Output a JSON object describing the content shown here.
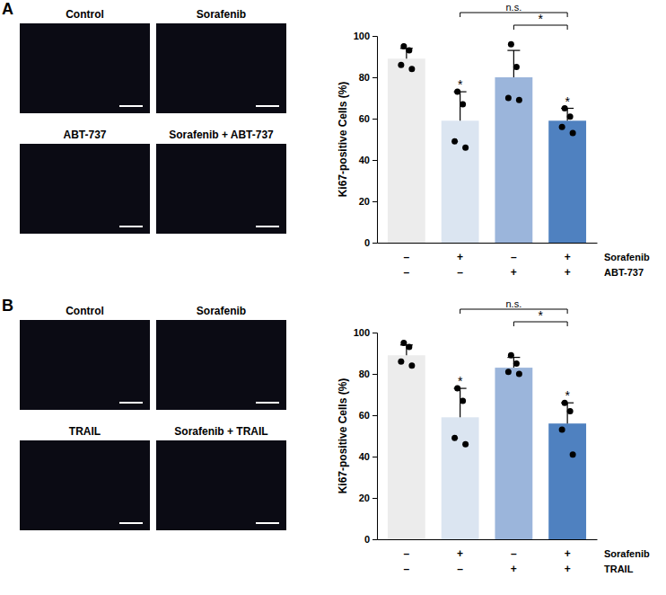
{
  "panels": [
    {
      "label": "A",
      "images": [
        "Control",
        "Sorafenib",
        "ABT-737",
        "Sorafenib + ABT-737"
      ]
    },
    {
      "label": "B",
      "images": [
        "Control",
        "Sorafenib",
        "TRAIL",
        "Sorafenib + TRAIL"
      ]
    }
  ],
  "chart_data": [
    {
      "type": "bar",
      "ylabel": "Ki67-positive Cells (%)",
      "categories": [
        null,
        null,
        null,
        null
      ],
      "values": [
        89,
        59,
        80,
        59
      ],
      "errors": [
        5,
        14,
        13,
        6
      ],
      "points": [
        [
          95,
          93,
          86,
          84
        ],
        [
          73,
          67,
          49,
          46
        ],
        [
          96,
          85,
          70,
          69
        ],
        [
          65,
          61,
          56,
          53
        ]
      ],
      "colors": [
        "#ececec",
        "#dbe5f1",
        "#9bb5db",
        "#4f81c0"
      ],
      "ylim": [
        0,
        100
      ],
      "yticks": [
        0,
        20,
        40,
        60,
        80,
        100
      ],
      "conditions": [
        {
          "name": "Sorafenib",
          "labels": [
            "–",
            "+",
            "–",
            "+"
          ]
        },
        {
          "name": "ABT-737",
          "labels": [
            "–",
            "–",
            "+",
            "+"
          ]
        }
      ],
      "annotations": [
        {
          "index": 1,
          "text": "*"
        },
        {
          "index": 3,
          "text": "*"
        }
      ],
      "brackets": [
        {
          "from": 1,
          "to": 3,
          "text": "n.s."
        },
        {
          "from": 2,
          "to": 3,
          "text": "*"
        }
      ]
    },
    {
      "type": "bar",
      "ylabel": "Ki67-positive Cells (%)",
      "categories": [
        null,
        null,
        null,
        null
      ],
      "values": [
        89,
        59,
        83,
        56
      ],
      "errors": [
        5,
        14,
        5,
        10
      ],
      "points": [
        [
          95,
          93,
          86,
          84
        ],
        [
          73,
          67,
          49,
          46
        ],
        [
          89,
          85,
          81,
          80
        ],
        [
          66,
          62,
          53,
          41
        ]
      ],
      "colors": [
        "#ececec",
        "#dbe5f1",
        "#9bb5db",
        "#4f81c0"
      ],
      "ylim": [
        0,
        100
      ],
      "yticks": [
        0,
        20,
        40,
        60,
        80,
        100
      ],
      "conditions": [
        {
          "name": "Sorafenib",
          "labels": [
            "–",
            "+",
            "–",
            "+"
          ]
        },
        {
          "name": "TRAIL",
          "labels": [
            "–",
            "–",
            "+",
            "+"
          ]
        }
      ],
      "annotations": [
        {
          "index": 1,
          "text": "*"
        },
        {
          "index": 3,
          "text": "*"
        }
      ],
      "brackets": [
        {
          "from": 1,
          "to": 3,
          "text": "n.s."
        },
        {
          "from": 2,
          "to": 3,
          "text": "*"
        }
      ]
    }
  ]
}
